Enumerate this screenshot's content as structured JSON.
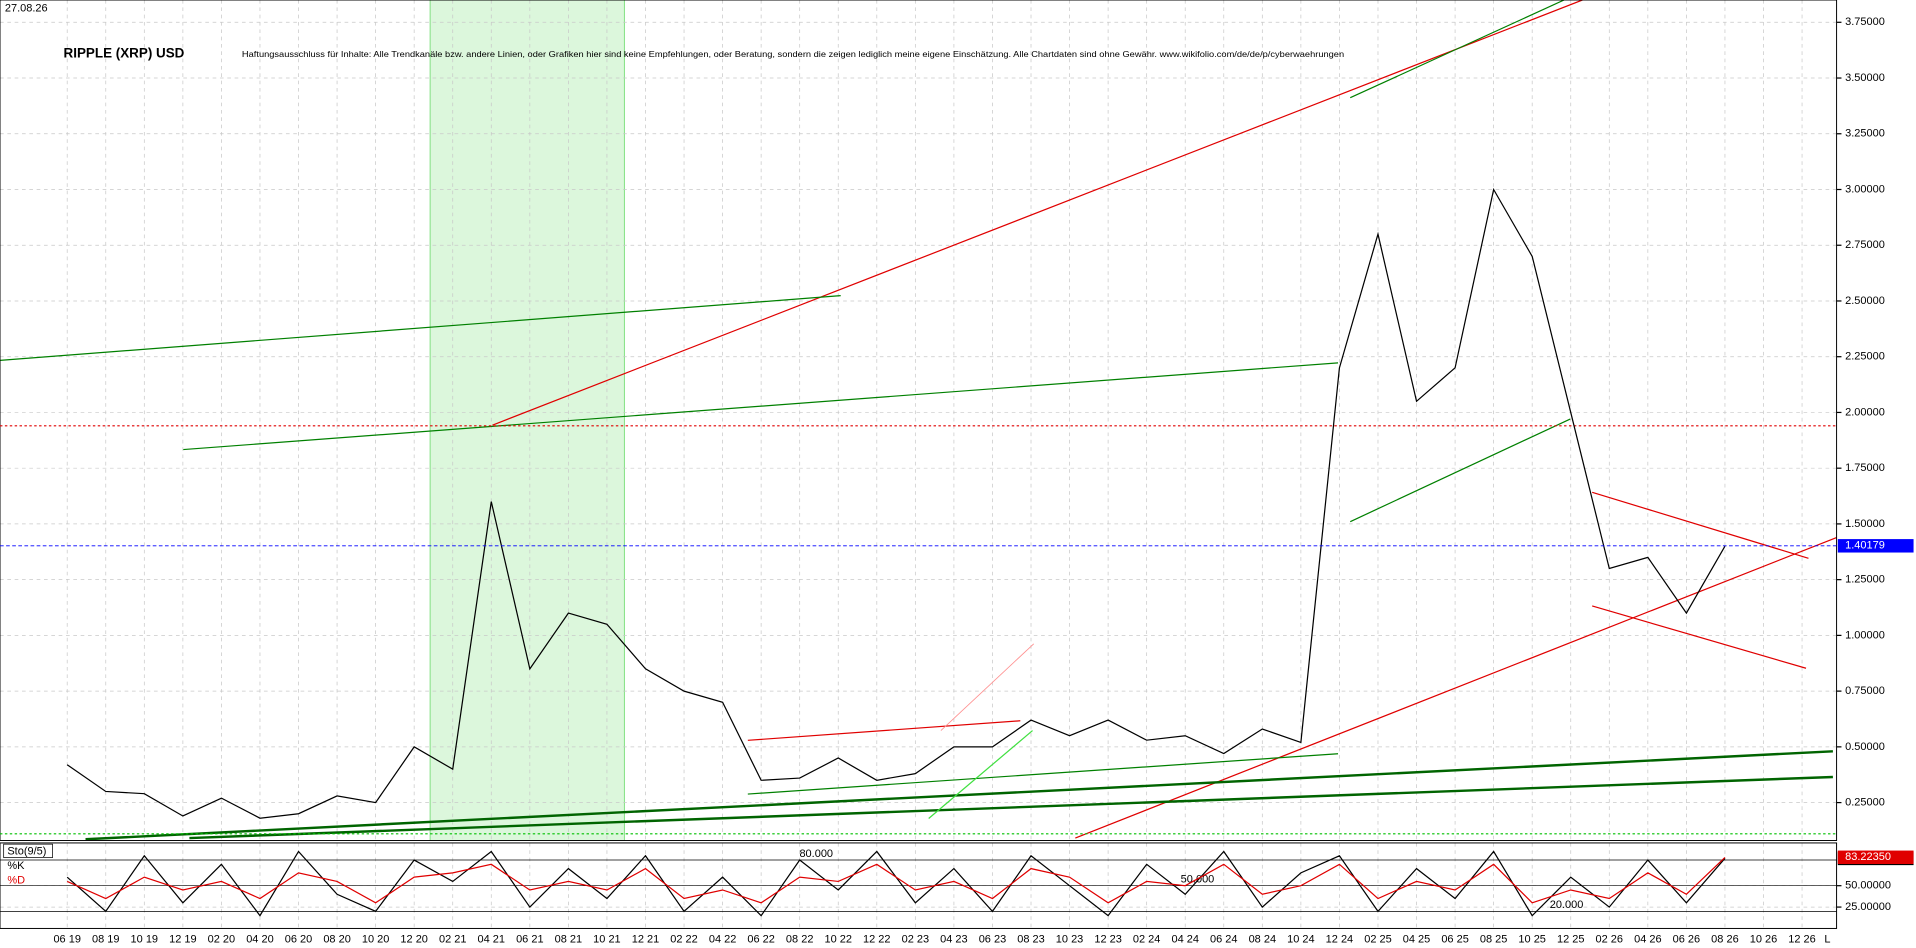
{
  "date": "27.08.26",
  "chart_data": [
    {
      "type": "line",
      "title": "RIPPLE (XRP) USD",
      "subtitle": "Haftungsausschluss für Inhalte: Alle Trendkanäle bzw. andere Linien, oder Grafiken hier sind keine Empfehlungen, oder Beratung, sondern die zeigen lediglich meine eigene Einschätzung. Alle Chartdaten sind ohne Gewähr. www.wikifolio.com/de/de/p/cyberwaehrungen",
      "categories": [
        "06 19",
        "08 19",
        "10 19",
        "12 19",
        "02 20",
        "04 20",
        "06 20",
        "08 20",
        "10 20",
        "12 20",
        "02 21",
        "04 21",
        "06 21",
        "08 21",
        "10 21",
        "12 21",
        "02 22",
        "04 22",
        "06 22",
        "08 22",
        "10 22",
        "12 22",
        "02 23",
        "04 23",
        "06 23",
        "08 23",
        "10 23",
        "12 23",
        "02 24",
        "04 24",
        "06 24",
        "08 24",
        "10 24",
        "12 24",
        "02 25",
        "04 25",
        "06 25",
        "08 25",
        "10 25",
        "12 25",
        "02 26",
        "04 26",
        "06 26",
        "08 26",
        "10 26",
        "12 26"
      ],
      "series": [
        {
          "color": "#000000",
          "values": [
            0.42,
            0.3,
            0.29,
            0.19,
            0.27,
            0.18,
            0.2,
            0.28,
            0.25,
            0.5,
            0.4,
            1.6,
            0.85,
            1.1,
            1.05,
            0.85,
            0.75,
            0.7,
            0.35,
            0.36,
            0.45,
            0.35,
            0.38,
            0.5,
            0.5,
            0.62,
            0.55,
            0.62,
            0.53,
            0.55,
            0.47,
            0.58,
            0.52,
            2.2,
            2.8,
            2.05,
            2.2,
            3.0,
            2.7,
            2.0,
            1.3,
            1.35,
            1.1,
            1.4,
            null,
            null
          ]
        }
      ],
      "ylim": [
        0.08,
        3.85
      ],
      "yticks": [
        {
          "value": 0.25,
          "label": "0.25000"
        },
        {
          "value": 0.5,
          "label": "0.50000"
        },
        {
          "value": 0.75,
          "label": "0.75000"
        },
        {
          "value": 1.0,
          "label": "1.00000"
        },
        {
          "value": 1.25,
          "label": "1.25000"
        },
        {
          "value": 1.5,
          "label": "1.50000"
        },
        {
          "value": 1.75,
          "label": "1.75000"
        },
        {
          "value": 2.0,
          "label": "2.00000"
        },
        {
          "value": 2.25,
          "label": "2.25000"
        },
        {
          "value": 2.5,
          "label": "2.50000"
        },
        {
          "value": 2.75,
          "label": "2.75000"
        },
        {
          "value": 3.0,
          "label": "3.00000"
        },
        {
          "value": 3.25,
          "label": "3.25000"
        },
        {
          "value": 3.5,
          "label": "3.50000"
        },
        {
          "value": 3.75,
          "label": "3.75000"
        }
      ],
      "current": {
        "value": 1.40179,
        "color": "#0000ff"
      },
      "hlines": [
        {
          "value": 1.94,
          "color": "#e00000"
        },
        {
          "value": 0.11,
          "color": "#00c000"
        }
      ],
      "grid": true,
      "axis_end_label": "L"
    },
    {
      "type": "line",
      "title": "Sto(9/5)",
      "series": [
        {
          "name": "%K",
          "color": "#000000",
          "values": [
            60,
            20,
            85,
            30,
            75,
            15,
            90,
            40,
            20,
            80,
            55,
            90,
            25,
            70,
            35,
            85,
            20,
            60,
            15,
            80,
            45,
            90,
            30,
            70,
            20,
            85,
            50,
            15,
            75,
            40,
            90,
            25,
            65,
            85,
            20,
            70,
            35,
            90,
            15,
            60,
            25,
            80,
            30,
            82,
            null,
            null
          ],
          "current": {
            "value": 81.91572,
            "color": "#000000"
          }
        },
        {
          "name": "%D",
          "color": "#e00000",
          "values": [
            55,
            35,
            60,
            45,
            55,
            35,
            65,
            55,
            30,
            60,
            65,
            75,
            45,
            55,
            45,
            70,
            35,
            45,
            30,
            60,
            55,
            75,
            45,
            55,
            35,
            70,
            60,
            30,
            55,
            50,
            75,
            40,
            50,
            75,
            35,
            55,
            45,
            75,
            30,
            45,
            35,
            65,
            40,
            83,
            null,
            null
          ],
          "current": {
            "value": 83.2235,
            "label": "83.22350",
            "color": "#e00000"
          }
        }
      ],
      "ylim": [
        0,
        100
      ],
      "yticks": [
        {
          "value": 25,
          "label": "25.00000"
        },
        {
          "value": 50,
          "label": "50.00000"
        }
      ],
      "levels": [
        {
          "value": 80,
          "label": "80.000"
        },
        {
          "value": 50,
          "label": "50.000"
        },
        {
          "value": 20,
          "label": "20.000"
        }
      ]
    }
  ]
}
